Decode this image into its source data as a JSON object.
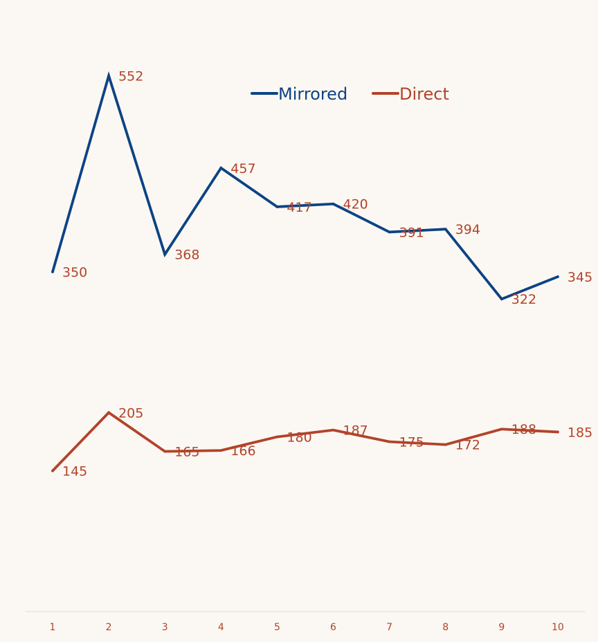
{
  "chart_data": {
    "type": "line",
    "title": "",
    "xlabel": "",
    "ylabel": "",
    "x": [
      1,
      2,
      3,
      4,
      5,
      6,
      7,
      8,
      9,
      10
    ],
    "ylim": [
      0,
      620
    ],
    "grid": false,
    "legend_position": "top-center",
    "series": [
      {
        "name": "Mirrored",
        "color": "#0d4385",
        "values": [
          350,
          552,
          368,
          457,
          417,
          420,
          391,
          394,
          322,
          345
        ]
      },
      {
        "name": "Direct",
        "color": "#b2432a",
        "values": [
          145,
          205,
          165,
          166,
          180,
          187,
          175,
          172,
          188,
          185
        ]
      }
    ],
    "label_color": "#b2432a",
    "tick_color": "#b2432a",
    "axis_color": "#e6e1da"
  }
}
